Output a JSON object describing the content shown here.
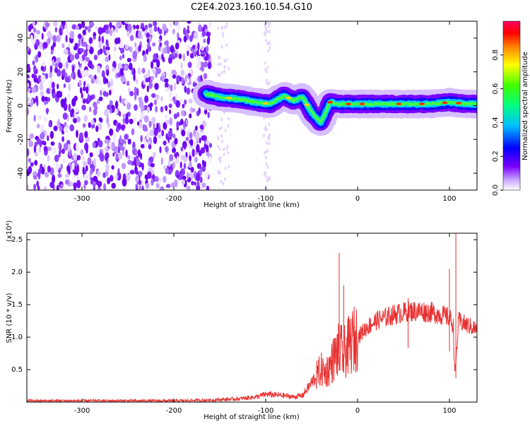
{
  "title": "C2E4.2023.160.10.54.G10",
  "colors": {
    "line": "#e83232",
    "rainbow": [
      "#7a00ff",
      "#0000ff",
      "#00bfff",
      "#00ff80",
      "#40ff00",
      "#ffff00",
      "#ff8000",
      "#ff0000",
      "#ff0060"
    ]
  },
  "chart_data": [
    {
      "type": "heatmap",
      "title": "C2E4.2023.160.10.54.G10",
      "xlabel": "Height of straight line (km)",
      "ylabel": "Frequency (Hz)",
      "xlim": [
        -360,
        130
      ],
      "ylim": [
        -50,
        50
      ],
      "xticks": [
        -300,
        -200,
        -100,
        0,
        100
      ],
      "yticks": [
        -40,
        -20,
        0,
        20,
        40
      ],
      "colorbar": {
        "label": "Normalized spectral amplitude",
        "ticks": [
          0.0,
          0.2,
          0.4,
          0.6,
          0.8
        ],
        "range": [
          0,
          1
        ]
      },
      "ridge": {
        "x": [
          -165,
          -150,
          -130,
          -110,
          -95,
          -80,
          -70,
          -60,
          -50,
          -40,
          -30,
          -20,
          -10,
          0,
          20,
          40,
          60,
          80,
          100,
          120,
          130
        ],
        "y": [
          7,
          5,
          4,
          2,
          1,
          6,
          3,
          5,
          -4,
          -10,
          2,
          1,
          1,
          1,
          1,
          1,
          1,
          1,
          2,
          1,
          1
        ]
      }
    },
    {
      "type": "line",
      "xlabel": "Height of straight line (km)",
      "ylabel": "SNR (10 * v/v)",
      "y_multiplier": "(x10⁴)",
      "xlim": [
        -360,
        130
      ],
      "ylim": [
        0,
        2.6
      ],
      "xticks": [
        -300,
        -200,
        -100,
        0,
        100
      ],
      "yticks": [
        0.5,
        1.0,
        1.5,
        2.0,
        2.5
      ],
      "x": [
        -360,
        -300,
        -200,
        -160,
        -130,
        -110,
        -100,
        -80,
        -70,
        -60,
        -50,
        -40,
        -35,
        -30,
        -25,
        -20,
        -15,
        -10,
        -5,
        0,
        10,
        20,
        30,
        40,
        50,
        60,
        70,
        80,
        90,
        100,
        104,
        106,
        110,
        120,
        130
      ],
      "values": [
        0.02,
        0.02,
        0.02,
        0.03,
        0.05,
        0.08,
        0.12,
        0.1,
        0.08,
        0.1,
        0.3,
        0.5,
        0.45,
        0.55,
        0.7,
        0.8,
        0.75,
        0.85,
        0.95,
        1.0,
        1.15,
        1.25,
        1.3,
        1.35,
        1.38,
        1.4,
        1.4,
        1.38,
        1.35,
        1.3,
        1.2,
        0.4,
        1.25,
        1.18,
        1.12
      ],
      "spikes": [
        {
          "x": -20,
          "y": 2.3
        },
        {
          "x": -15,
          "y": 1.8
        },
        {
          "x": 55,
          "y": 1.6
        },
        {
          "x": 100,
          "y": 2.05
        },
        {
          "x": 107,
          "y": 2.6
        }
      ]
    }
  ]
}
